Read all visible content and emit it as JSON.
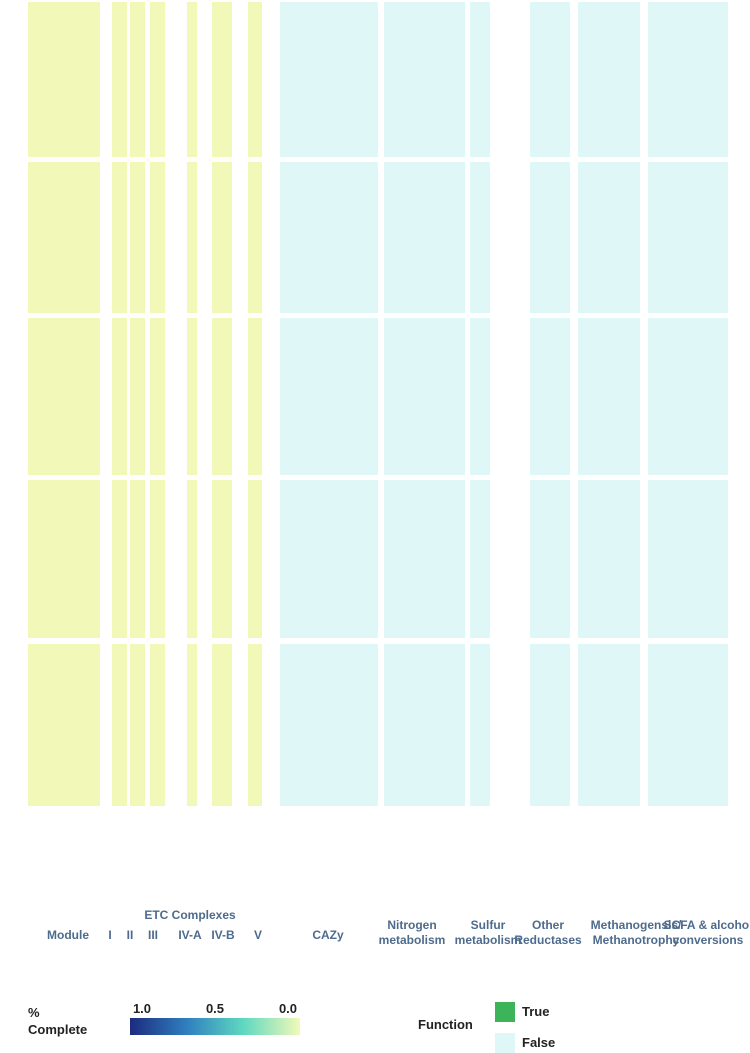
{
  "chart_data": {
    "type": "heatmap",
    "column_groups": [
      "Module",
      "I",
      "II",
      "III",
      "IV-A",
      "IV-B",
      "V",
      "CAZy",
      "Nitrogen metabolism",
      "Sulfur metabolism",
      "Other Reductases",
      "Methanogensis/ Methanotrophy",
      "SCFA & alcohol conversions"
    ],
    "etc_title": "ETC Complexes",
    "colorbar": {
      "title": "% Complete",
      "ticks": [
        {
          "value": 1,
          "label": "1.0"
        },
        {
          "value": 0.5,
          "label": "0.5"
        },
        {
          "value": 0,
          "label": "0.0"
        }
      ],
      "lim": [
        1,
        0
      ],
      "colors": [
        "#1d2b7e",
        "#2f7fbf",
        "#5fd8c0",
        "#f2f9b8"
      ]
    },
    "function_legend": {
      "title": "Function",
      "entries": [
        {
          "name": "True",
          "color": "#3db35a"
        },
        {
          "name": "False",
          "color": "#e0f7f7"
        }
      ]
    }
  }
}
